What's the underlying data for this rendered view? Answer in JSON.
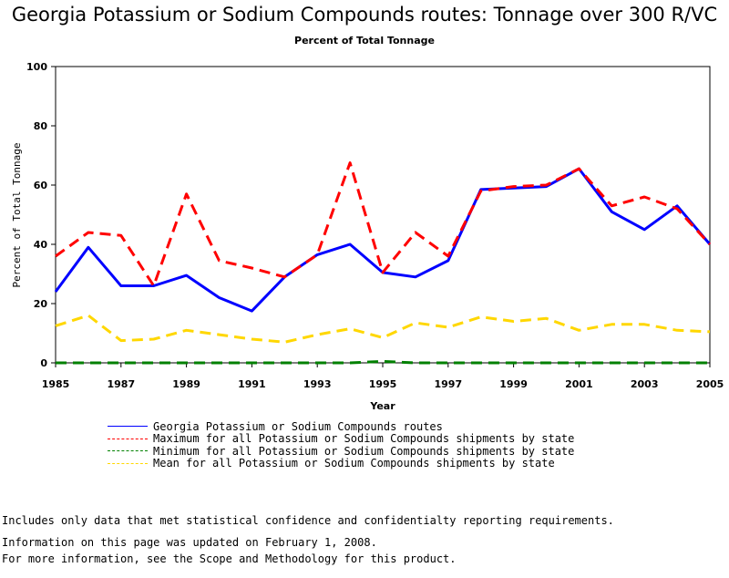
{
  "chart_data": {
    "type": "line",
    "title": "Georgia Potassium or Sodium Compounds routes: Tonnage over 300 R/VC",
    "subtitle": "Percent of Total Tonnage",
    "xlabel": "Year",
    "ylabel": "Percent of Total Tonnage",
    "ylim": [
      0,
      100
    ],
    "xlim": [
      1985,
      2005
    ],
    "yticks": [
      "0",
      "20",
      "40",
      "60",
      "80",
      "100"
    ],
    "xticks": [
      "1985",
      "1987",
      "1989",
      "1991",
      "1993",
      "1995",
      "1997",
      "1999",
      "2001",
      "2003",
      "2005"
    ],
    "grid": false,
    "legend_position": "bottom",
    "x": [
      1985,
      1986,
      1987,
      1988,
      1989,
      1990,
      1991,
      1992,
      1993,
      1994,
      1995,
      1996,
      1997,
      1998,
      1999,
      2000,
      2001,
      2002,
      2003,
      2004,
      2005
    ],
    "series": [
      {
        "name": "Georgia Potassium or Sodium Compounds routes",
        "color": "#0000ff",
        "style": "solid",
        "values": [
          24,
          39,
          26,
          26,
          29.5,
          22,
          17.5,
          29,
          36.5,
          40,
          30.5,
          29,
          34.5,
          58.5,
          59,
          59.5,
          65.5,
          51,
          45,
          53,
          40
        ]
      },
      {
        "name": "Maximum for all Potassium or Sodium Compounds shipments by state",
        "color": "#ff0000",
        "style": "dashed",
        "values": [
          36,
          44,
          43,
          26,
          57,
          34.5,
          32,
          29,
          36.5,
          67.5,
          30.5,
          44,
          36,
          58,
          59.5,
          60,
          65.5,
          53,
          56,
          52,
          40
        ]
      },
      {
        "name": "Minimum for all Potassium or Sodium Compounds shipments by state",
        "color": "#008000",
        "style": "dashed",
        "values": [
          0,
          0,
          0,
          0,
          0,
          0,
          0,
          0,
          0,
          0,
          0.5,
          0,
          0,
          0,
          0,
          0,
          0,
          0,
          0,
          0,
          0
        ]
      },
      {
        "name": "Mean for all Potassium or Sodium Compounds shipments by state",
        "color": "#ffd700",
        "style": "dashed",
        "values": [
          12.5,
          16,
          7.5,
          8,
          11,
          9.5,
          8,
          7,
          9.5,
          11.5,
          8.5,
          13.5,
          12,
          15.5,
          14,
          15,
          11,
          13,
          13,
          11,
          10.5
        ]
      }
    ]
  },
  "notes": [
    "Includes only data that met statistical confidence and confidentialty reporting requirements.",
    "For more information, see the Scope and Methodology for this product."
  ],
  "updated": "Information on this page was updated on February 1, 2008."
}
